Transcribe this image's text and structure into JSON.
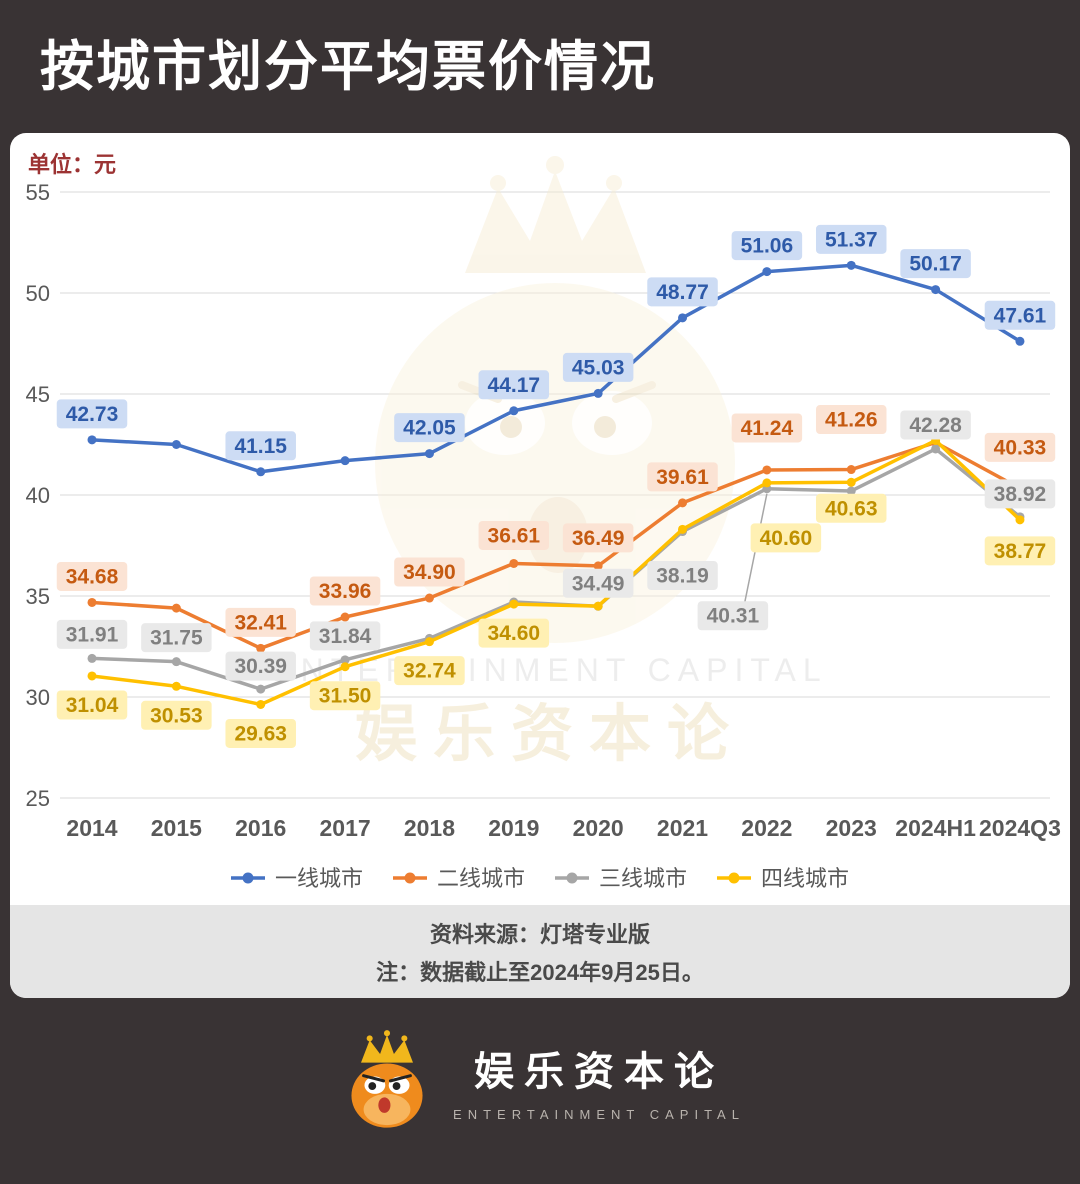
{
  "page": {
    "title": "按城市划分平均票价情况",
    "unit_label": "单位：元",
    "source_line1": "资料来源：灯塔专业版",
    "source_line2": "注：数据截止至2024年9月25日。",
    "brand": {
      "name": "娱乐资本论",
      "subtitle": "ENTERTAINMENT CAPITAL"
    },
    "watermark": {
      "line1": "ENTERTAINMENT CAPITAL",
      "line2": "娱乐资本论"
    }
  },
  "chart_data": {
    "type": "line",
    "title": "按城市划分平均票价情况",
    "unit": "元",
    "categories": [
      "2014",
      "2015",
      "2016",
      "2017",
      "2018",
      "2019",
      "2020",
      "2021",
      "2022",
      "2023",
      "2024H1",
      "2024Q3"
    ],
    "ylim": [
      25,
      55
    ],
    "yticks": [
      55,
      50,
      45,
      40,
      35,
      30,
      25
    ],
    "grid": true,
    "legend_position": "bottom",
    "axis_color": "#595959",
    "grid_color": "#d9d9d9",
    "series": [
      {
        "name": "一线城市",
        "color": "#4472c4",
        "label_bg": "#cddcf4",
        "label_fg": "#2e5aa8",
        "values": [
          42.73,
          42.5,
          41.15,
          41.7,
          42.05,
          44.17,
          45.03,
          48.77,
          51.06,
          51.37,
          50.17,
          47.61
        ],
        "labels": [
          {
            "i": 0,
            "text": "42.73",
            "dy": -26
          },
          {
            "i": 2,
            "text": "41.15",
            "dy": -26
          },
          {
            "i": 4,
            "text": "42.05",
            "dy": -26
          },
          {
            "i": 5,
            "text": "44.17",
            "dy": -26
          },
          {
            "i": 6,
            "text": "45.03",
            "dy": -26
          },
          {
            "i": 7,
            "text": "48.77",
            "dy": -26
          },
          {
            "i": 8,
            "text": "51.06",
            "dy": -26
          },
          {
            "i": 9,
            "text": "51.37",
            "dy": -26
          },
          {
            "i": 10,
            "text": "50.17",
            "dy": -26
          },
          {
            "i": 11,
            "text": "47.61",
            "dy": -26
          }
        ]
      },
      {
        "name": "二线城市",
        "color": "#ed7d31",
        "label_bg": "#fbe3d4",
        "label_fg": "#c55a11",
        "values": [
          34.68,
          34.4,
          32.41,
          33.96,
          34.9,
          36.61,
          36.49,
          39.61,
          41.24,
          41.26,
          42.6,
          40.33
        ],
        "labels": [
          {
            "i": 0,
            "text": "34.68",
            "dy": -26
          },
          {
            "i": 2,
            "text": "32.41",
            "dy": -26
          },
          {
            "i": 3,
            "text": "33.96",
            "dy": -26
          },
          {
            "i": 4,
            "text": "34.90",
            "dy": -26
          },
          {
            "i": 5,
            "text": "36.61",
            "dy": -28
          },
          {
            "i": 6,
            "text": "36.49",
            "dy": -28
          },
          {
            "i": 7,
            "text": "39.61",
            "dy": -26
          },
          {
            "i": 8,
            "text": "41.24",
            "dy": -42
          },
          {
            "i": 9,
            "text": "41.26",
            "dy": -50
          },
          {
            "i": 11,
            "text": "40.33",
            "dy": -41
          }
        ]
      },
      {
        "name": "三线城市",
        "color": "#a6a6a6",
        "label_bg": "#e9e9e9",
        "label_fg": "#808080",
        "values": [
          31.91,
          31.75,
          30.39,
          31.84,
          32.9,
          34.7,
          34.49,
          38.19,
          40.31,
          40.2,
          42.28,
          38.92
        ],
        "labels": [
          {
            "i": 0,
            "text": "31.91",
            "dy": -24
          },
          {
            "i": 1,
            "text": "31.75",
            "dy": -24
          },
          {
            "i": 2,
            "text": "30.39",
            "dy": -23
          },
          {
            "i": 3,
            "text": "31.84",
            "dy": -24
          },
          {
            "i": 6,
            "text": "34.49",
            "dy": -23
          },
          {
            "i": 7,
            "text": "38.19",
            "dy": 44
          },
          {
            "i": 8,
            "text": "40.31",
            "dx": -34,
            "dy": 127,
            "leader": true
          },
          {
            "i": 10,
            "text": "42.28",
            "dy": -24
          },
          {
            "i": 11,
            "text": "38.92",
            "dy": -23
          }
        ]
      },
      {
        "name": "四线城市",
        "color": "#ffc000",
        "label_bg": "#fff0b3",
        "label_fg": "#bf9000",
        "values": [
          31.04,
          30.53,
          29.63,
          31.5,
          32.74,
          34.6,
          34.5,
          38.3,
          40.6,
          40.63,
          42.7,
          38.77
        ],
        "labels": [
          {
            "i": 0,
            "text": "31.04",
            "dy": 29
          },
          {
            "i": 1,
            "text": "30.53",
            "dy": 29
          },
          {
            "i": 2,
            "text": "29.63",
            "dy": 29
          },
          {
            "i": 3,
            "text": "31.50",
            "dy": 29
          },
          {
            "i": 4,
            "text": "32.74",
            "dy": 29
          },
          {
            "i": 5,
            "text": "34.60",
            "dy": 29
          },
          {
            "i": 8,
            "text": "40.60",
            "dx": 19,
            "dy": 55
          },
          {
            "i": 9,
            "text": "40.63",
            "dy": 26
          },
          {
            "i": 11,
            "text": "38.77",
            "dy": 31
          }
        ]
      }
    ]
  }
}
